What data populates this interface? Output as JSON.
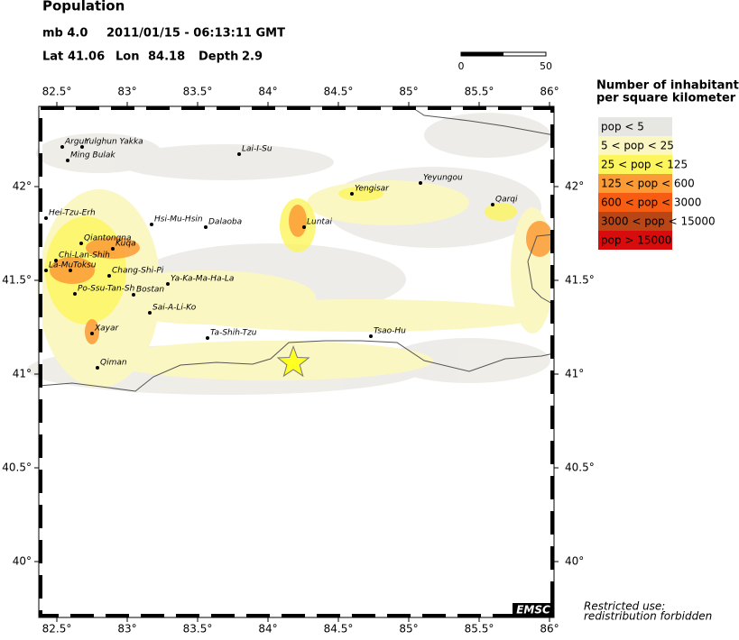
{
  "header": {
    "title": "Population",
    "magnitude": "mb 4.0",
    "datetime": "2011/01/15 - 06:13:11 GMT",
    "lat_label": "Lat",
    "lat": 41.06,
    "lon_label": "Lon",
    "lon": 84.18,
    "depth_label": "Depth",
    "depth": 2.9
  },
  "scale_bar": {
    "labels": [
      0,
      50
    ]
  },
  "map": {
    "xticks": [
      {
        "value": 82.5,
        "label": "82.5°"
      },
      {
        "value": 83,
        "label": "83°"
      },
      {
        "value": 83.5,
        "label": "83.5°"
      },
      {
        "value": 84,
        "label": "84°"
      },
      {
        "value": 84.5,
        "label": "84.5°"
      },
      {
        "value": 85,
        "label": "85°"
      },
      {
        "value": 85.5,
        "label": "85.5°"
      },
      {
        "value": 86,
        "label": "86°"
      }
    ],
    "yticks": [
      {
        "value": 42,
        "label": "42°"
      },
      {
        "value": 41.5,
        "label": "41.5°"
      },
      {
        "value": 41,
        "label": "41°"
      },
      {
        "value": 40.5,
        "label": "40.5°"
      },
      {
        "value": 40,
        "label": "40°"
      }
    ],
    "places": [
      "Argur",
      "Yulghun Yakka",
      "Ming Bulak",
      "Lai-I-Su",
      "Hei-Tzu-Erh",
      "Hsi-Mu-Hsin",
      "Dalaoba",
      "Luntai",
      "Yengisar",
      "Yeyungou",
      "Qarqi",
      "Qiantongna",
      "Kuqa",
      "Chi-Lan-Shih",
      "La-Mu",
      "Toksu",
      "Chang-Shi-Pi",
      "Ya-Ka-Ma-Ha-La",
      "Po-Ssu-Tan-Sh",
      "Bostan",
      "Sai-A-Li-Ko",
      "Xayar",
      "Ta-Shih-Tzu",
      "Tsao-Hu",
      "Qiman"
    ]
  },
  "legend": {
    "title": [
      "Number of inhabitants",
      "per square kilometer"
    ],
    "items": [
      {
        "label": "pop < 5",
        "color": "#e6e6e2"
      },
      {
        "label": "5 < pop < 25",
        "color": "#fbf7c2"
      },
      {
        "label": "25 < pop < 125",
        "color": "#fcf55c"
      },
      {
        "label": "125 < pop < 600",
        "color": "#fb9b36"
      },
      {
        "label": "600 < pop < 3000",
        "color": "#f75d12"
      },
      {
        "label": "3000 < pop < 15000",
        "color": "#b94617"
      },
      {
        "label": "pop > 15000",
        "color": "#d80c0c"
      }
    ]
  },
  "footer": {
    "brand": "EMSC",
    "notice": [
      "Restricted use:",
      "redistribution forbidden"
    ]
  }
}
